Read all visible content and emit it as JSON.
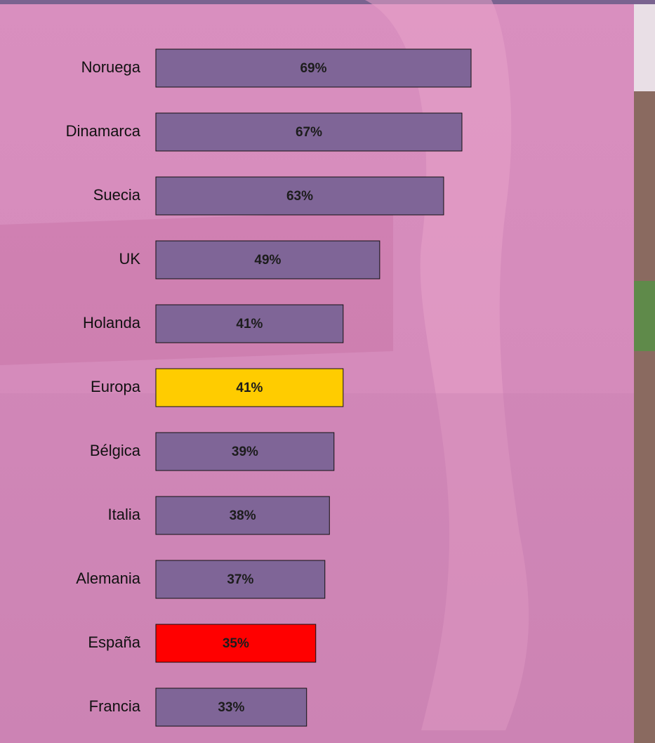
{
  "chart_data": {
    "type": "bar",
    "orientation": "horizontal",
    "categories": [
      "Noruega",
      "Dinamarca",
      "Suecia",
      "UK",
      "Holanda",
      "Europa",
      "Bélgica",
      "Italia",
      "Alemania",
      "España",
      "Francia"
    ],
    "values": [
      69,
      67,
      63,
      49,
      41,
      41,
      39,
      38,
      37,
      35,
      33
    ],
    "value_labels": [
      "69%",
      "67%",
      "63%",
      "49%",
      "41%",
      "41%",
      "39%",
      "38%",
      "37%",
      "35%",
      "33%"
    ],
    "colors": [
      "#7f6597",
      "#7f6597",
      "#7f6597",
      "#7f6597",
      "#7f6597",
      "#ffcc00",
      "#7f6597",
      "#7f6597",
      "#7f6597",
      "#ff0000",
      "#7f6597"
    ]
  }
}
